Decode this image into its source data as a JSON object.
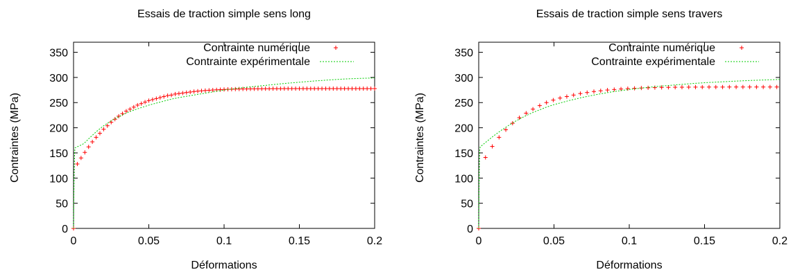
{
  "chart_data": [
    {
      "type": "line",
      "title": "Essais de traction simple sens long",
      "xlabel": "Déformations",
      "ylabel": "Contraintes (MPa)",
      "xlim": [
        0,
        0.2
      ],
      "ylim": [
        0,
        370
      ],
      "xticks": [
        "0",
        "0.05",
        "0.1",
        "0.15",
        "0.2"
      ],
      "yticks": [
        "0",
        "50",
        "100",
        "150",
        "200",
        "250",
        "300",
        "350"
      ],
      "legend_position": "top-right",
      "series": [
        {
          "name": "Contrainte numérique",
          "style": "points",
          "marker": "+",
          "color": "#ff0000",
          "points": [
            [
              0,
              0
            ],
            [
              0.0025,
              128
            ],
            [
              0.005,
              140
            ],
            [
              0.0075,
              151
            ],
            [
              0.01,
              162
            ],
            [
              0.0125,
              172
            ],
            [
              0.015,
              181
            ],
            [
              0.0175,
              189
            ],
            [
              0.02,
              197
            ],
            [
              0.0225,
              204
            ],
            [
              0.025,
              211
            ],
            [
              0.0275,
              217
            ],
            [
              0.03,
              223
            ],
            [
              0.0325,
              228
            ],
            [
              0.035,
              233
            ],
            [
              0.0375,
              237
            ],
            [
              0.04,
              241
            ],
            [
              0.0425,
              245
            ],
            [
              0.045,
              248
            ],
            [
              0.0475,
              251
            ],
            [
              0.05,
              254
            ],
            [
              0.0525,
              256
            ],
            [
              0.055,
              258
            ],
            [
              0.0575,
              260
            ],
            [
              0.06,
              262
            ],
            [
              0.0625,
              264
            ],
            [
              0.065,
              265
            ],
            [
              0.0675,
              267
            ],
            [
              0.07,
              268
            ],
            [
              0.0725,
              269
            ],
            [
              0.075,
              270
            ],
            [
              0.0775,
              271
            ],
            [
              0.08,
              272
            ],
            [
              0.0825,
              272.7
            ],
            [
              0.085,
              273.4
            ],
            [
              0.0875,
              274
            ],
            [
              0.09,
              274.5
            ],
            [
              0.0925,
              275
            ],
            [
              0.095,
              275.4
            ],
            [
              0.0975,
              275.8
            ],
            [
              0.1,
              276.1
            ],
            [
              0.1025,
              276.4
            ],
            [
              0.105,
              276.6
            ],
            [
              0.1075,
              276.8
            ],
            [
              0.11,
              277
            ],
            [
              0.1125,
              277.1
            ],
            [
              0.115,
              277.2
            ],
            [
              0.1175,
              277.3
            ],
            [
              0.12,
              277.4
            ],
            [
              0.1225,
              277.5
            ],
            [
              0.125,
              277.5
            ],
            [
              0.1275,
              277.6
            ],
            [
              0.13,
              277.6
            ],
            [
              0.1325,
              277.7
            ],
            [
              0.135,
              277.7
            ],
            [
              0.1375,
              277.7
            ],
            [
              0.14,
              277.8
            ],
            [
              0.1425,
              277.8
            ],
            [
              0.145,
              277.8
            ],
            [
              0.1475,
              277.8
            ],
            [
              0.15,
              277.8
            ],
            [
              0.1525,
              277.8
            ],
            [
              0.155,
              277.8
            ],
            [
              0.1575,
              277.8
            ],
            [
              0.16,
              277.8
            ],
            [
              0.1625,
              277.8
            ],
            [
              0.165,
              277.8
            ],
            [
              0.1675,
              277.8
            ],
            [
              0.17,
              277.8
            ],
            [
              0.1725,
              277.8
            ],
            [
              0.175,
              277.8
            ],
            [
              0.1775,
              277.8
            ],
            [
              0.18,
              277.8
            ],
            [
              0.1825,
              277.8
            ],
            [
              0.185,
              277.8
            ],
            [
              0.1875,
              277.8
            ],
            [
              0.19,
              277.8
            ],
            [
              0.1925,
              277.8
            ],
            [
              0.195,
              277.8
            ],
            [
              0.1975,
              277.8
            ],
            [
              0.2,
              277.8
            ]
          ]
        },
        {
          "name": "Contrainte expérimentale",
          "style": "dashed-line",
          "color": "#00cc00",
          "points": [
            [
              0,
              0
            ],
            [
              0.0003,
              90
            ],
            [
              0.0007,
              150
            ],
            [
              0.001,
              160
            ],
            [
              0.003,
              163
            ],
            [
              0.006,
              167
            ],
            [
              0.008,
              172
            ],
            [
              0.01,
              178
            ],
            [
              0.015,
              192
            ],
            [
              0.02,
              204
            ],
            [
              0.025,
              214
            ],
            [
              0.03,
              222
            ],
            [
              0.035,
              229
            ],
            [
              0.04,
              235
            ],
            [
              0.045,
              240
            ],
            [
              0.05,
              245
            ],
            [
              0.055,
              249
            ],
            [
              0.06,
              253
            ],
            [
              0.065,
              257
            ],
            [
              0.07,
              260
            ],
            [
              0.08,
              265
            ],
            [
              0.09,
              270
            ],
            [
              0.1,
              275
            ],
            [
              0.11,
              279
            ],
            [
              0.12,
              282
            ],
            [
              0.13,
              285
            ],
            [
              0.14,
              288
            ],
            [
              0.15,
              290.5
            ],
            [
              0.16,
              293
            ],
            [
              0.17,
              295
            ],
            [
              0.18,
              297
            ],
            [
              0.19,
              298
            ],
            [
              0.2,
              299
            ]
          ]
        }
      ]
    },
    {
      "type": "line",
      "title": "Essais de traction simple sens travers",
      "xlabel": "Déformations",
      "ylabel": "Contraintes (MPa)",
      "xlim": [
        0,
        0.2
      ],
      "ylim": [
        0,
        370
      ],
      "xticks": [
        "0",
        "0.05",
        "0.1",
        "0.15",
        "0.2"
      ],
      "yticks": [
        "0",
        "50",
        "100",
        "150",
        "200",
        "250",
        "300",
        "350"
      ],
      "legend_position": "top-right",
      "series": [
        {
          "name": "Contrainte numérique",
          "style": "points",
          "marker": "+",
          "color": "#ff0000",
          "points": [
            [
              0,
              0
            ],
            [
              0.0045,
              141
            ],
            [
              0.009,
              163
            ],
            [
              0.0135,
              181
            ],
            [
              0.018,
              196
            ],
            [
              0.0225,
              209
            ],
            [
              0.027,
              220
            ],
            [
              0.0315,
              229
            ],
            [
              0.036,
              237
            ],
            [
              0.0405,
              244
            ],
            [
              0.045,
              250
            ],
            [
              0.0495,
              255
            ],
            [
              0.054,
              259
            ],
            [
              0.0585,
              262
            ],
            [
              0.063,
              265
            ],
            [
              0.0675,
              268
            ],
            [
              0.072,
              270
            ],
            [
              0.0765,
              272
            ],
            [
              0.081,
              273.5
            ],
            [
              0.0855,
              275
            ],
            [
              0.09,
              276
            ],
            [
              0.0945,
              277
            ],
            [
              0.099,
              277.8
            ],
            [
              0.1035,
              278.4
            ],
            [
              0.108,
              279
            ],
            [
              0.1125,
              279.4
            ],
            [
              0.117,
              279.8
            ],
            [
              0.1215,
              280.1
            ],
            [
              0.126,
              280.3
            ],
            [
              0.1305,
              280.5
            ],
            [
              0.135,
              280.6
            ],
            [
              0.1395,
              280.7
            ],
            [
              0.144,
              280.8
            ],
            [
              0.1485,
              280.8
            ],
            [
              0.153,
              280.9
            ],
            [
              0.1575,
              280.9
            ],
            [
              0.162,
              280.9
            ],
            [
              0.1665,
              281
            ],
            [
              0.171,
              281
            ],
            [
              0.1755,
              281
            ],
            [
              0.18,
              281
            ],
            [
              0.1845,
              281
            ],
            [
              0.189,
              281
            ],
            [
              0.1935,
              281
            ],
            [
              0.198,
              281
            ]
          ]
        },
        {
          "name": "Contrainte expérimentale",
          "style": "dashed-line",
          "color": "#00cc00",
          "points": [
            [
              0,
              0
            ],
            [
              0.0003,
              100
            ],
            [
              0.0006,
              155
            ],
            [
              0.001,
              162
            ],
            [
              0.005,
              172
            ],
            [
              0.01,
              184
            ],
            [
              0.015,
              195
            ],
            [
              0.02,
              205
            ],
            [
              0.025,
              214
            ],
            [
              0.03,
              222
            ],
            [
              0.035,
              229
            ],
            [
              0.04,
              235
            ],
            [
              0.045,
              241
            ],
            [
              0.05,
              246
            ],
            [
              0.06,
              254
            ],
            [
              0.07,
              261
            ],
            [
              0.08,
              267
            ],
            [
              0.09,
              272
            ],
            [
              0.1,
              276
            ],
            [
              0.11,
              279.5
            ],
            [
              0.12,
              282.5
            ],
            [
              0.13,
              285
            ],
            [
              0.14,
              287.5
            ],
            [
              0.15,
              289.5
            ],
            [
              0.16,
              291
            ],
            [
              0.17,
              292.5
            ],
            [
              0.18,
              294
            ],
            [
              0.19,
              295
            ],
            [
              0.2,
              296
            ]
          ]
        }
      ]
    }
  ]
}
